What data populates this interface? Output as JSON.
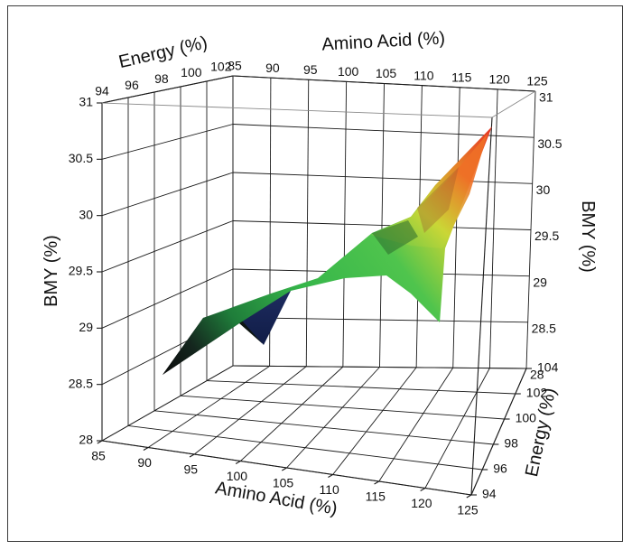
{
  "chart_data": {
    "type": "surface3d",
    "x_axis": {
      "label": "Amino Acid (%)",
      "ticks": [
        "85",
        "90",
        "95",
        "100",
        "105",
        "110",
        "115",
        "120",
        "125"
      ],
      "range": [
        85,
        125
      ]
    },
    "y_axis": {
      "label": "Energy (%)",
      "ticks_right": [
        "94",
        "96",
        "98",
        "100",
        "102",
        "104"
      ],
      "ticks_top": [
        "94",
        "96",
        "98",
        "100",
        "102"
      ],
      "range": [
        94,
        104
      ]
    },
    "z_axis": {
      "label": "BMY (%)",
      "ticks": [
        "28",
        "28.5",
        "29",
        "29.5",
        "30",
        "30.5",
        "31"
      ],
      "range": [
        28,
        31
      ]
    },
    "surface": {
      "colormap": [
        "#0b0b0b",
        "#1f2a5c",
        "#2fb34a",
        "#c8d233",
        "#e83020"
      ],
      "points": [
        {
          "amino_acid": 85,
          "energy": 94,
          "bmy": 28.8
        },
        {
          "amino_acid": 90,
          "energy": 96,
          "bmy": 29.2
        },
        {
          "amino_acid": 95,
          "energy": 100,
          "bmy": 29.4
        },
        {
          "amino_acid": 100,
          "energy": 96,
          "bmy": 29.3
        },
        {
          "amino_acid": 105,
          "energy": 98,
          "bmy": 29.6
        },
        {
          "amino_acid": 110,
          "energy": 100,
          "bmy": 29.8
        },
        {
          "amino_acid": 115,
          "energy": 101,
          "bmy": 28.6
        },
        {
          "amino_acid": 120,
          "energy": 102,
          "bmy": 30.3
        },
        {
          "amino_acid": 125,
          "energy": 104,
          "bmy": 30.9
        }
      ]
    },
    "grid": true
  }
}
